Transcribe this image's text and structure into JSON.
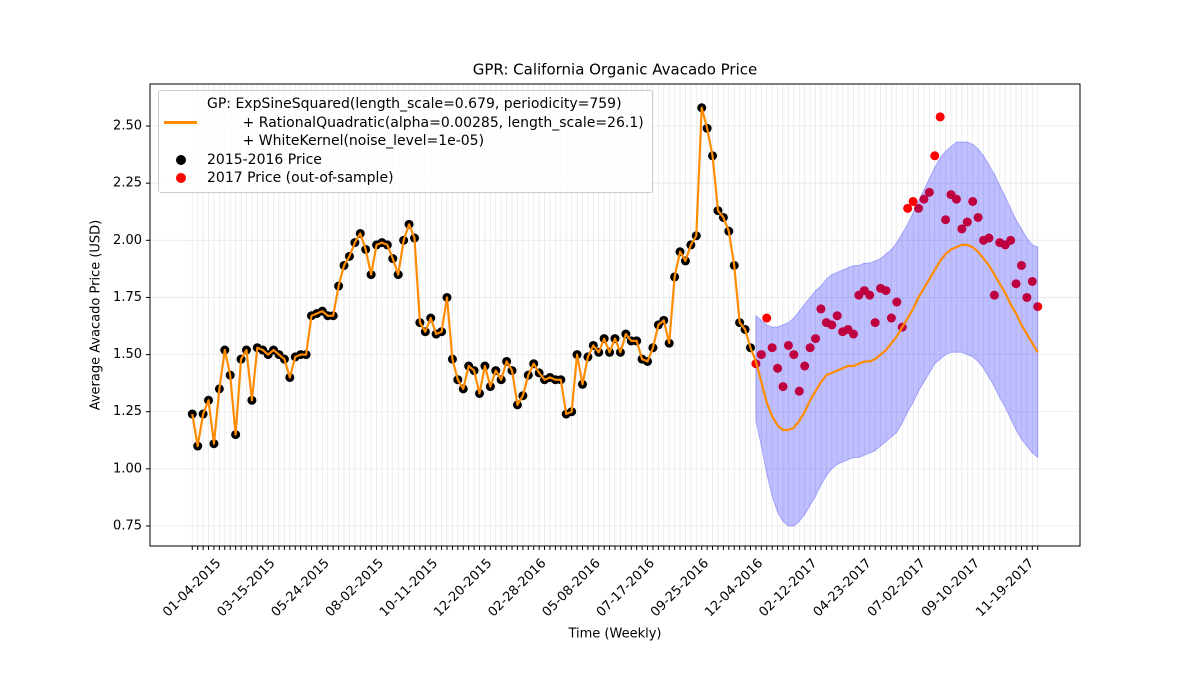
{
  "chart_data": {
    "type": "line",
    "title": "GPR: California Organic Avacado Price",
    "xlabel": "Time (Weekly)",
    "ylabel": "Average Avacado Price (USD)",
    "categories": [
      "01-04-2015",
      null,
      null,
      null,
      null,
      null,
      null,
      null,
      null,
      null,
      "03-15-2015",
      null,
      null,
      null,
      null,
      null,
      null,
      null,
      null,
      null,
      "05-24-2015",
      null,
      null,
      null,
      null,
      null,
      null,
      null,
      null,
      null,
      "08-02-2015",
      null,
      null,
      null,
      null,
      null,
      null,
      null,
      null,
      null,
      "10-11-2015",
      null,
      null,
      null,
      null,
      null,
      null,
      null,
      null,
      null,
      "12-20-2015",
      null,
      null,
      null,
      null,
      null,
      null,
      null,
      null,
      null,
      "02-28-2016",
      null,
      null,
      null,
      null,
      null,
      null,
      null,
      null,
      null,
      "05-08-2016",
      null,
      null,
      null,
      null,
      null,
      null,
      null,
      null,
      null,
      "07-17-2016",
      null,
      null,
      null,
      null,
      null,
      null,
      null,
      null,
      null,
      "09-25-2016",
      null,
      null,
      null,
      null,
      null,
      null,
      null,
      null,
      null,
      "12-04-2016",
      null,
      null,
      null,
      null,
      null,
      null,
      null,
      null,
      null,
      "02-12-2017",
      null,
      null,
      null,
      null,
      null,
      null,
      null,
      null,
      null,
      "04-23-2017",
      null,
      null,
      null,
      null,
      null,
      null,
      null,
      null,
      null,
      "07-02-2017",
      null,
      null,
      null,
      null,
      null,
      null,
      null,
      null,
      null,
      "09-10-2017",
      null,
      null,
      null,
      null,
      null,
      null,
      null,
      null,
      null,
      "11-19-2017",
      null,
      null,
      null,
      null,
      null,
      null
    ],
    "ylim": [
      0.6625,
      2.684
    ],
    "yticks": [
      0.75,
      {
        "value": 1.0,
        "label": "1.00"
      },
      1.25,
      {
        "value": 1.5,
        "label": "1.50"
      },
      1.75,
      {
        "value": 2.0,
        "label": "2.00"
      },
      2.25,
      {
        "value": 2.5,
        "label": "2.50"
      }
    ],
    "grid": true,
    "legend": "upper left",
    "series": [
      {
        "name": "GP: ExpSineSquared(length_scale=0.679, periodicity=759)\n        + RationalQuadratic(alpha=0.00285, length_scale=26.1)\n        + WhiteKernel(noise_level=1e-05)",
        "style": "line",
        "color": "#ff8c00",
        "values": [
          1.24,
          1.1,
          1.24,
          1.3,
          1.11,
          1.35,
          1.52,
          1.41,
          1.15,
          1.48,
          1.52,
          1.3,
          1.53,
          1.52,
          1.5,
          1.52,
          1.5,
          1.48,
          1.4,
          1.49,
          1.5,
          1.5,
          1.67,
          1.68,
          1.69,
          1.67,
          1.67,
          1.8,
          1.89,
          1.93,
          1.99,
          2.03,
          1.96,
          1.85,
          1.98,
          1.99,
          1.98,
          1.92,
          1.85,
          2.0,
          2.07,
          2.01,
          1.64,
          1.6,
          1.66,
          1.59,
          1.6,
          1.75,
          1.48,
          1.39,
          1.35,
          1.45,
          1.43,
          1.33,
          1.45,
          1.36,
          1.43,
          1.39,
          1.47,
          1.43,
          1.28,
          1.32,
          1.41,
          1.46,
          1.42,
          1.39,
          1.4,
          1.39,
          1.39,
          1.24,
          1.25,
          1.5,
          1.37,
          1.49,
          1.54,
          1.51,
          1.57,
          1.51,
          1.57,
          1.51,
          1.59,
          1.56,
          1.56,
          1.48,
          1.47,
          1.53,
          1.63,
          1.65,
          1.55,
          1.84,
          1.95,
          1.91,
          1.98,
          2.02,
          2.58,
          2.49,
          2.37,
          2.13,
          2.1,
          2.04,
          1.89,
          1.64,
          1.61,
          1.53,
          1.47,
          1.38,
          1.29,
          1.23,
          1.19,
          1.17,
          1.17,
          1.18,
          1.21,
          1.25,
          1.3,
          1.34,
          1.38,
          1.41,
          1.42,
          1.43,
          1.44,
          1.45,
          1.45,
          1.46,
          1.47,
          1.47,
          1.48,
          1.5,
          1.52,
          1.55,
          1.58,
          1.62,
          1.66,
          1.7,
          1.75,
          1.79,
          1.83,
          1.87,
          1.91,
          1.94,
          1.96,
          1.97,
          1.98,
          1.98,
          1.97,
          1.95,
          1.92,
          1.89,
          1.85,
          1.81,
          1.77,
          1.72,
          1.68,
          1.63,
          1.59,
          1.55,
          1.51
        ]
      },
      {
        "name": "2015-2016 Price",
        "style": "marker",
        "color": "#000000",
        "values": [
          1.24,
          1.1,
          1.24,
          1.3,
          1.11,
          1.35,
          1.52,
          1.41,
          1.15,
          1.48,
          1.52,
          1.3,
          1.53,
          1.52,
          1.5,
          1.52,
          1.5,
          1.48,
          1.4,
          1.49,
          1.5,
          1.5,
          1.67,
          1.68,
          1.69,
          1.67,
          1.67,
          1.8,
          1.89,
          1.93,
          1.99,
          2.03,
          1.96,
          1.85,
          1.98,
          1.99,
          1.98,
          1.92,
          1.85,
          2.0,
          2.07,
          2.01,
          1.64,
          1.6,
          1.66,
          1.59,
          1.6,
          1.75,
          1.48,
          1.39,
          1.35,
          1.45,
          1.43,
          1.33,
          1.45,
          1.36,
          1.43,
          1.39,
          1.47,
          1.43,
          1.28,
          1.32,
          1.41,
          1.46,
          1.42,
          1.39,
          1.4,
          1.39,
          1.39,
          1.24,
          1.25,
          1.5,
          1.37,
          1.49,
          1.54,
          1.51,
          1.57,
          1.51,
          1.57,
          1.51,
          1.59,
          1.56,
          1.56,
          1.48,
          1.47,
          1.53,
          1.63,
          1.65,
          1.55,
          1.84,
          1.95,
          1.91,
          1.98,
          2.02,
          2.58,
          2.49,
          2.37,
          2.13,
          2.1,
          2.04,
          1.89,
          1.64,
          1.61,
          1.53,
          null,
          null,
          null,
          null,
          null,
          null,
          null,
          null,
          null,
          null,
          null,
          null,
          null,
          null,
          null,
          null,
          null,
          null,
          null,
          null,
          null,
          null,
          null,
          null,
          null,
          null,
          null,
          null,
          null,
          null,
          null,
          null,
          null,
          null,
          null,
          null,
          null,
          null,
          null,
          null,
          null,
          null,
          null,
          null,
          null,
          null,
          null,
          null,
          null,
          null,
          null,
          null,
          null
        ]
      },
      {
        "name": "2017 Price (out-of-sample)",
        "style": "marker",
        "color": "#ff0000",
        "values": [
          null,
          null,
          null,
          null,
          null,
          null,
          null,
          null,
          null,
          null,
          null,
          null,
          null,
          null,
          null,
          null,
          null,
          null,
          null,
          null,
          null,
          null,
          null,
          null,
          null,
          null,
          null,
          null,
          null,
          null,
          null,
          null,
          null,
          null,
          null,
          null,
          null,
          null,
          null,
          null,
          null,
          null,
          null,
          null,
          null,
          null,
          null,
          null,
          null,
          null,
          null,
          null,
          null,
          null,
          null,
          null,
          null,
          null,
          null,
          null,
          null,
          null,
          null,
          null,
          null,
          null,
          null,
          null,
          null,
          null,
          null,
          null,
          null,
          null,
          null,
          null,
          null,
          null,
          null,
          null,
          null,
          null,
          null,
          null,
          null,
          null,
          null,
          null,
          null,
          null,
          null,
          null,
          null,
          null,
          null,
          null,
          null,
          null,
          null,
          null,
          null,
          null,
          null,
          null,
          1.46,
          1.5,
          1.66,
          1.53,
          1.44,
          1.36,
          1.54,
          1.5,
          1.34,
          1.45,
          1.53,
          1.57,
          1.7,
          1.64,
          1.63,
          1.67,
          1.6,
          1.61,
          1.59,
          1.76,
          1.78,
          1.76,
          1.64,
          1.79,
          1.78,
          1.66,
          1.73,
          1.62,
          2.14,
          2.17,
          2.14,
          2.18,
          2.21,
          2.37,
          2.54,
          2.09,
          2.2,
          2.18,
          2.05,
          2.08,
          2.17,
          2.1,
          2.0,
          2.01,
          1.76,
          1.99,
          1.98,
          2.0,
          1.81,
          1.89,
          1.75,
          1.82,
          1.71
        ]
      }
    ],
    "band": {
      "color": "#0000ff",
      "alpha": 0.25,
      "upper": [
        null,
        null,
        null,
        null,
        null,
        null,
        null,
        null,
        null,
        null,
        null,
        null,
        null,
        null,
        null,
        null,
        null,
        null,
        null,
        null,
        null,
        null,
        null,
        null,
        null,
        null,
        null,
        null,
        null,
        null,
        null,
        null,
        null,
        null,
        null,
        null,
        null,
        null,
        null,
        null,
        null,
        null,
        null,
        null,
        null,
        null,
        null,
        null,
        null,
        null,
        null,
        null,
        null,
        null,
        null,
        null,
        null,
        null,
        null,
        null,
        null,
        null,
        null,
        null,
        null,
        null,
        null,
        null,
        null,
        null,
        null,
        null,
        null,
        null,
        null,
        null,
        null,
        null,
        null,
        null,
        null,
        null,
        null,
        null,
        null,
        null,
        null,
        null,
        null,
        null,
        null,
        null,
        null,
        null,
        null,
        null,
        null,
        null,
        null,
        null,
        null,
        null,
        null,
        null,
        1.67,
        1.65,
        1.63,
        1.62,
        1.62,
        1.63,
        1.64,
        1.66,
        1.69,
        1.72,
        1.75,
        1.78,
        1.8,
        1.83,
        1.85,
        1.86,
        1.87,
        1.88,
        1.89,
        1.89,
        1.9,
        1.9,
        1.91,
        1.92,
        1.94,
        1.96,
        1.99,
        2.03,
        2.07,
        2.12,
        2.17,
        2.22,
        2.27,
        2.32,
        2.36,
        2.39,
        2.41,
        2.43,
        2.43,
        2.43,
        2.42,
        2.4,
        2.37,
        2.33,
        2.29,
        2.24,
        2.19,
        2.14,
        2.09,
        2.05,
        2.01,
        1.98,
        1.97
      ],
      "lower": [
        null,
        null,
        null,
        null,
        null,
        null,
        null,
        null,
        null,
        null,
        null,
        null,
        null,
        null,
        null,
        null,
        null,
        null,
        null,
        null,
        null,
        null,
        null,
        null,
        null,
        null,
        null,
        null,
        null,
        null,
        null,
        null,
        null,
        null,
        null,
        null,
        null,
        null,
        null,
        null,
        null,
        null,
        null,
        null,
        null,
        null,
        null,
        null,
        null,
        null,
        null,
        null,
        null,
        null,
        null,
        null,
        null,
        null,
        null,
        null,
        null,
        null,
        null,
        null,
        null,
        null,
        null,
        null,
        null,
        null,
        null,
        null,
        null,
        null,
        null,
        null,
        null,
        null,
        null,
        null,
        null,
        null,
        null,
        null,
        null,
        null,
        null,
        null,
        null,
        null,
        null,
        null,
        null,
        null,
        null,
        null,
        null,
        null,
        null,
        null,
        null,
        null,
        null,
        null,
        1.21,
        1.1,
        0.98,
        0.88,
        0.81,
        0.77,
        0.75,
        0.75,
        0.77,
        0.8,
        0.84,
        0.88,
        0.93,
        0.97,
        1.0,
        1.02,
        1.03,
        1.04,
        1.05,
        1.05,
        1.06,
        1.07,
        1.08,
        1.1,
        1.12,
        1.14,
        1.16,
        1.2,
        1.25,
        1.29,
        1.34,
        1.38,
        1.42,
        1.46,
        1.48,
        1.5,
        1.51,
        1.51,
        1.51,
        1.5,
        1.49,
        1.47,
        1.44,
        1.4,
        1.36,
        1.31,
        1.27,
        1.22,
        1.17,
        1.13,
        1.1,
        1.07,
        1.05
      ]
    }
  }
}
